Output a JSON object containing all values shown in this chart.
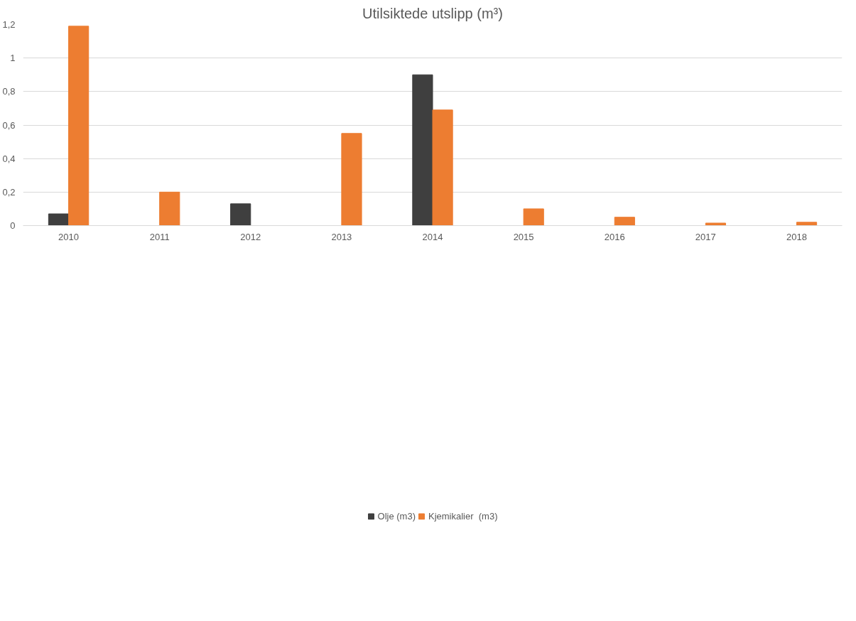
{
  "chart_data": {
    "type": "bar",
    "title": "Utilsiktede utslipp (m³)",
    "categories": [
      "2010",
      "2011",
      "2012",
      "2013",
      "2014",
      "2015",
      "2016",
      "2017",
      "2018"
    ],
    "series": [
      {
        "name": "Olje (m3)",
        "color": "#3f3f3f",
        "values": [
          0.07,
          0,
          0.13,
          0,
          0.9,
          0,
          0,
          0,
          0
        ]
      },
      {
        "name": "Kjemikalier  (m3)",
        "color": "#ed7d31",
        "values": [
          1.19,
          0.2,
          0,
          0.55,
          0.69,
          0.1,
          0.05,
          0.015,
          0.02
        ]
      }
    ],
    "ylim": [
      0,
      1.2
    ],
    "yticks": [
      0,
      {
        "value": 0.2,
        "label": "0,2"
      },
      {
        "value": 0.4,
        "label": "0,4"
      },
      {
        "value": 0.6,
        "label": "0,6"
      },
      {
        "value": 0.8,
        "label": "0,8"
      },
      1,
      {
        "value": 1.2,
        "label": "1,2"
      }
    ],
    "grid": "y",
    "legend": "bottom"
  }
}
